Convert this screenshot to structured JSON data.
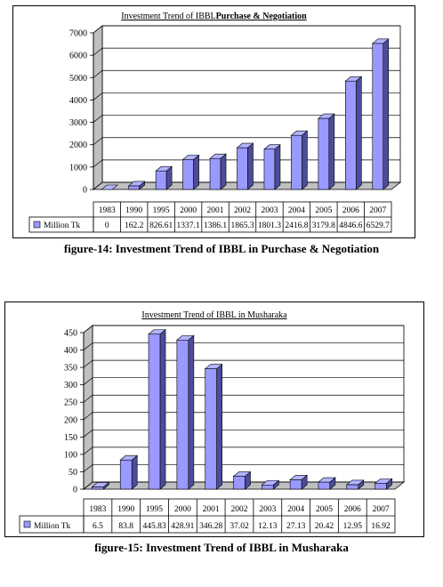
{
  "chart_data": [
    {
      "type": "bar",
      "title_prefix": "Investment Trend of IBBL",
      "title_bold": "Purchase & Negotiation",
      "categories": [
        "1983",
        "1990",
        "1995",
        "2000",
        "2001",
        "2002",
        "2003",
        "2004",
        "2005",
        "2006",
        "2007"
      ],
      "series": [
        {
          "name": "Million Tk",
          "values": [
            0,
            162.2,
            826.61,
            1337.1,
            1386.1,
            1865.3,
            1801.3,
            2416.8,
            3179.8,
            4846.6,
            6529.7
          ],
          "value_labels": [
            "0",
            "162.2",
            "826.61",
            "1337.1",
            "1386.1",
            "1865.3",
            "1801.3",
            "2416.8",
            "3179.8",
            "4846.6",
            "6529.7"
          ],
          "color": "#8080ff"
        }
      ],
      "yticks": [
        0,
        1000,
        2000,
        3000,
        4000,
        5000,
        6000,
        7000
      ],
      "ylim": [
        0,
        7000
      ],
      "grid": true,
      "legend": "data-table-left",
      "figure_caption": "figure-14: Investment Trend of IBBL in Purchase & Negotiation"
    },
    {
      "type": "bar",
      "title_prefix": "Investment Trend of IBBL in Musharaka",
      "title_bold": "",
      "categories": [
        "1983",
        "1990",
        "1995",
        "2000",
        "2001",
        "2002",
        "2003",
        "2004",
        "2005",
        "2006",
        "2007"
      ],
      "series": [
        {
          "name": "Million Tk",
          "values": [
            6.5,
            83.8,
            445.83,
            428.91,
            346.28,
            37.02,
            12.13,
            27.13,
            20.42,
            12.95,
            16.92
          ],
          "value_labels": [
            "6.5",
            "83.8",
            "445.83",
            "428.91",
            "346.28",
            "37.02",
            "12.13",
            "27.13",
            "20.42",
            "12.95",
            "16.92"
          ],
          "color": "#8080ff"
        }
      ],
      "yticks": [
        0,
        50,
        100,
        150,
        200,
        250,
        300,
        350,
        400,
        450
      ],
      "ylim": [
        0,
        450
      ],
      "grid": true,
      "legend": "data-table-left",
      "figure_caption": "figure-15: Investment Trend of IBBL in Musharaka"
    }
  ]
}
